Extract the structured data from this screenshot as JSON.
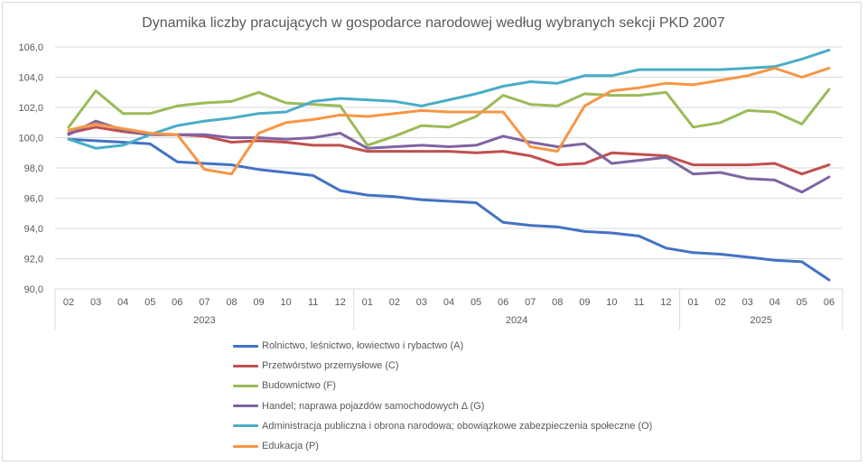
{
  "chart_data": {
    "type": "line",
    "title": "Dynamika liczby pracujących w gospodarce narodowej według wybranych sekcji PKD 2007",
    "xlabel": "",
    "ylabel": "",
    "ylim": [
      90,
      106
    ],
    "yticks": [
      "90,0",
      "92,0",
      "94,0",
      "96,0",
      "98,0",
      "100,0",
      "102,0",
      "104,0",
      "106,0"
    ],
    "grid": true,
    "legend_position": "bottom",
    "categories": [
      "02",
      "03",
      "04",
      "05",
      "06",
      "07",
      "08",
      "09",
      "10",
      "11",
      "12",
      "01",
      "02",
      "03",
      "04",
      "05",
      "06",
      "07",
      "08",
      "09",
      "10",
      "11",
      "12",
      "01",
      "02",
      "03",
      "04",
      "05",
      "06"
    ],
    "year_groups": [
      {
        "label": "2023",
        "count": 11
      },
      {
        "label": "2024",
        "count": 12
      },
      {
        "label": "2025",
        "count": 6
      }
    ],
    "series": [
      {
        "name": "Rolnictwo, leśnictwo, łowiectwo i rybactwo (A)",
        "color": "#4472c4",
        "values": [
          99.9,
          99.8,
          99.7,
          99.6,
          98.4,
          98.3,
          98.2,
          97.9,
          97.7,
          97.5,
          96.5,
          96.2,
          96.1,
          95.9,
          95.8,
          95.7,
          94.4,
          94.2,
          94.1,
          93.8,
          93.7,
          93.5,
          92.7,
          92.4,
          92.3,
          92.1,
          91.9,
          91.8,
          90.6
        ]
      },
      {
        "name": "Przetwórstwo przemysłowe (C)",
        "color": "#c0504d",
        "values": [
          100.3,
          100.7,
          100.4,
          100.2,
          100.2,
          100.1,
          99.7,
          99.8,
          99.7,
          99.5,
          99.5,
          99.1,
          99.1,
          99.1,
          99.1,
          99.0,
          99.1,
          98.8,
          98.2,
          98.3,
          99.0,
          98.9,
          98.8,
          98.2,
          98.2,
          98.2,
          98.3,
          97.6,
          98.2
        ]
      },
      {
        "name": "Budownictwo (F)",
        "color": "#9bbb59",
        "values": [
          100.7,
          103.1,
          101.6,
          101.6,
          102.1,
          102.3,
          102.4,
          103.0,
          102.3,
          102.2,
          102.1,
          99.5,
          100.1,
          100.8,
          100.7,
          101.4,
          102.8,
          102.2,
          102.1,
          102.9,
          102.8,
          102.8,
          103.0,
          100.7,
          101.0,
          101.8,
          101.7,
          100.9,
          103.2
        ]
      },
      {
        "name": "Handel; naprawa pojazdów samochodowych Δ (G)",
        "color": "#8064a2",
        "values": [
          100.2,
          101.1,
          100.5,
          100.2,
          100.2,
          100.2,
          100.0,
          100.0,
          99.9,
          100.0,
          100.3,
          99.3,
          99.4,
          99.5,
          99.4,
          99.5,
          100.1,
          99.7,
          99.4,
          99.6,
          98.3,
          98.5,
          98.7,
          97.6,
          97.7,
          97.3,
          97.2,
          96.4,
          97.4
        ]
      },
      {
        "name": "Administracja publiczna i obrona  narodowa;  obowiązkowe zabezpieczenia społeczne (O)",
        "color": "#4bacc6",
        "values": [
          99.9,
          99.3,
          99.5,
          100.2,
          100.8,
          101.1,
          101.3,
          101.6,
          101.7,
          102.4,
          102.6,
          102.5,
          102.4,
          102.1,
          102.5,
          102.9,
          103.4,
          103.7,
          103.6,
          104.1,
          104.1,
          104.5,
          104.5,
          104.5,
          104.5,
          104.6,
          104.7,
          105.2,
          105.8
        ]
      },
      {
        "name": "Edukacja (P)",
        "color": "#f79646",
        "values": [
          100.5,
          100.9,
          100.6,
          100.3,
          100.2,
          97.9,
          97.6,
          100.3,
          101.0,
          101.2,
          101.5,
          101.4,
          101.6,
          101.8,
          101.7,
          101.7,
          101.7,
          99.4,
          99.1,
          102.1,
          103.1,
          103.3,
          103.6,
          103.5,
          103.8,
          104.1,
          104.6,
          104.0,
          104.6
        ]
      }
    ]
  }
}
